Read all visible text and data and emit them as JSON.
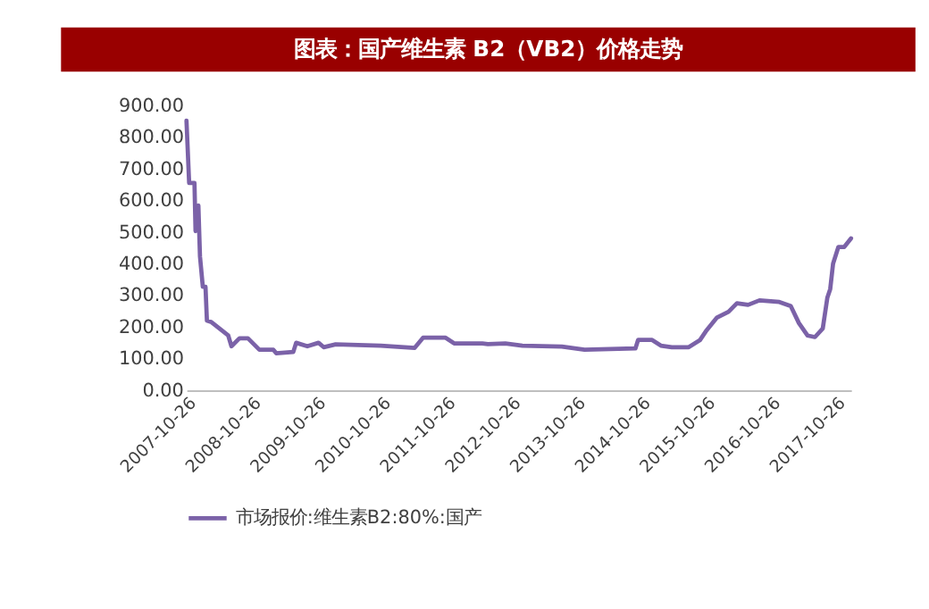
{
  "chart_data": {
    "type": "line",
    "title": "图表：国产维生素 B2（VB2）价格走势",
    "x": [
      "2007-10-26",
      "2007-11-10",
      "2007-12-10",
      "2007-12-16",
      "2008-01-01",
      "2008-01-10",
      "2008-01-26",
      "2008-02-10",
      "2008-02-18",
      "2008-03-15",
      "2008-06-17",
      "2008-07-05",
      "2008-08-19",
      "2008-10-06",
      "2008-12-09",
      "2009-02-26",
      "2009-03-14",
      "2009-06-18",
      "2009-07-04",
      "2009-09-05",
      "2009-11-07",
      "2009-12-06",
      "2010-02-11",
      "2010-10-23",
      "2011-05-02",
      "2011-06-18",
      "2011-10-23",
      "2011-12-10",
      "2012-05-17",
      "2012-06-17",
      "2012-09-23",
      "2012-12-28",
      "2013-08-07",
      "2013-12-13",
      "2014-09-25",
      "2014-10-10",
      "2014-12-28",
      "2015-02-15",
      "2015-04-18",
      "2015-07-22",
      "2015-09-24",
      "2015-10-26",
      "2015-12-28",
      "2016-03-02",
      "2016-04-18",
      "2016-06-20",
      "2016-08-23",
      "2016-12-13",
      "2017-02-15",
      "2017-04-02",
      "2017-05-20",
      "2017-07-01",
      "2017-08-14",
      "2017-09-09",
      "2017-09-25",
      "2017-10-11",
      "2017-11-10",
      "2017-12-13",
      "2018-01-20"
    ],
    "series": [
      {
        "name": "市场报价:维生素B2:80%:国产",
        "color": "#7b62a8",
        "values": [
          852,
          655,
          655,
          503,
          584,
          423,
          327,
          327,
          220,
          215,
          173,
          139,
          164,
          164,
          128,
          128,
          117,
          121,
          150,
          139,
          150,
          136,
          145,
          141,
          134,
          166,
          166,
          148,
          148,
          146,
          148,
          141,
          138,
          128,
          132,
          159,
          159,
          141,
          136,
          136,
          159,
          186,
          230,
          248,
          275,
          270,
          284,
          279,
          266,
          212,
          173,
          168,
          195,
          293,
          320,
          400,
          453,
          453,
          480
        ]
      }
    ],
    "ylim": [
      0,
      900
    ],
    "yticks": [
      {
        "value": 0,
        "label": "0.00"
      },
      {
        "value": 100,
        "label": "100.00"
      },
      {
        "value": 200,
        "label": "200.00"
      },
      {
        "value": 300,
        "label": "300.00"
      },
      {
        "value": 400,
        "label": "400.00"
      },
      {
        "value": 500,
        "label": "500.00"
      },
      {
        "value": 600,
        "label": "600.00"
      },
      {
        "value": 700,
        "label": "700.00"
      },
      {
        "value": 800,
        "label": "800.00"
      },
      {
        "value": 900,
        "label": "900.00"
      }
    ],
    "xlim": [
      "2007-10-26",
      "2018-01-20"
    ],
    "xticks": [
      "2007-10-26",
      "2008-10-26",
      "2009-10-26",
      "2010-10-26",
      "2011-10-26",
      "2012-10-26",
      "2013-10-26",
      "2014-10-26",
      "2015-10-26",
      "2016-10-26",
      "2017-10-26"
    ],
    "grid": false,
    "legend": "bottom",
    "marker": "none",
    "line_style": "solid"
  }
}
